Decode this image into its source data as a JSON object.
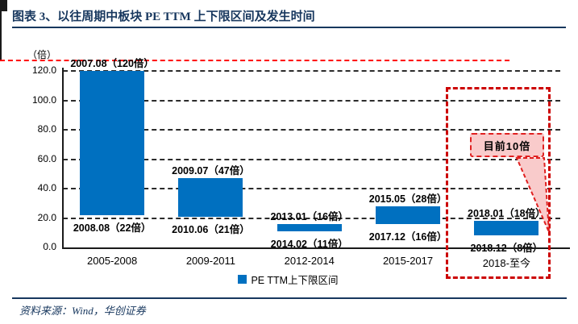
{
  "header": {
    "title": "图表 3、以往周期中板块 PE TTM 上下限区间及发生时间"
  },
  "footer": {
    "source": "资料来源：Wind，华创证券"
  },
  "chart_data": {
    "type": "bar",
    "subtype": "floating-range-columns",
    "title": "以往周期中板块 PE TTM 上下限区间及发生时间",
    "unit_label": "（倍）",
    "ylim": [
      0,
      120
    ],
    "grid": "horizontal-dashed-black",
    "legend_position": "bottom-center",
    "categories": [
      "2005-2008",
      "2009-2011",
      "2012-2014",
      "2015-2017",
      "2018-至今"
    ],
    "series": [
      {
        "name": "PE TTM上下限区间",
        "color": "#0070C0",
        "ranges": [
          {
            "low": 22,
            "high": 120
          },
          {
            "low": 21,
            "high": 47
          },
          {
            "low": 11,
            "high": 16
          },
          {
            "low": 16,
            "high": 28
          },
          {
            "low": 8,
            "high": 18
          }
        ]
      }
    ],
    "point_labels": [
      {
        "high": "2007.08（120倍）",
        "low": "2008.08（22倍）"
      },
      {
        "high": "2009.07（47倍）",
        "low": "2010.06（21倍）"
      },
      {
        "high": "2013.01（16倍）",
        "low": "2014.02（11倍）"
      },
      {
        "high": "2015.05（28倍）",
        "low": "2017.12（16倍）"
      },
      {
        "high": "2018.01（18倍）",
        "low": "2018.12（8倍）"
      }
    ],
    "y_ticks": [
      {
        "value": 0,
        "label": "0.0"
      },
      {
        "value": 20,
        "label": "20.0"
      },
      {
        "value": 40,
        "label": "40.0"
      },
      {
        "value": 60,
        "label": "60.0"
      },
      {
        "value": 80,
        "label": "80.0"
      },
      {
        "value": 100,
        "label": "100.0"
      },
      {
        "value": 120,
        "label": "120.0"
      }
    ],
    "current_line": {
      "value": 10,
      "label": "目前10倍",
      "style": "red-dashed"
    },
    "highlight": {
      "category": "2018-至今",
      "style": "red-dashed-box"
    },
    "colors": {
      "bar": "#0070C0",
      "gridline": "#2B2B2B",
      "red_line": "#FF0000",
      "highlight_border": "#CC0000",
      "callout_border": "#E02020",
      "callout_fill": "#F9CBCB",
      "navy": "#17375E"
    }
  }
}
